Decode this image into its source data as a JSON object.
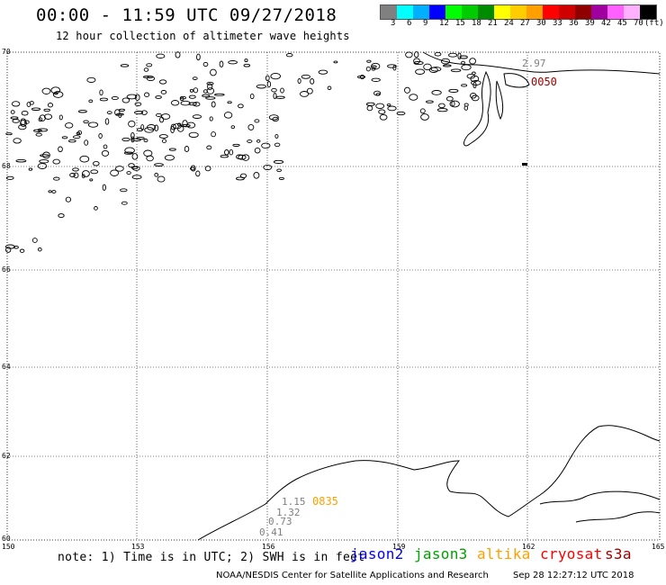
{
  "header": {
    "title": "00:00 - 11:59 UTC 09/27/2018",
    "subtitle": "12 hour collection of altimeter wave heights"
  },
  "color_scale": {
    "swatches": [
      "#808080",
      "#00ffff",
      "#00b0ff",
      "#0000ff",
      "#00ff00",
      "#00cc00",
      "#008c00",
      "#ffff00",
      "#ffcc00",
      "#ffa000",
      "#ff0000",
      "#d00000",
      "#900000",
      "#a000a0",
      "#ff60ff",
      "#ffb0ff",
      "#000000"
    ],
    "labels": [
      "3",
      "6",
      "9",
      "12",
      "15",
      "18",
      "21",
      "24",
      "27",
      "30",
      "33",
      "36",
      "39",
      "42",
      "45",
      "70",
      "(ft)"
    ]
  },
  "axes": {
    "lat_labels": [
      "70",
      "68",
      "66",
      "64",
      "62",
      "60"
    ],
    "lon_labels": [
      "150",
      "153",
      "156",
      "159",
      "162",
      "165"
    ]
  },
  "passes": {
    "top_value": "2.97",
    "top_time": "0050",
    "bottom_values": [
      "1.15",
      "1.32",
      "0.73",
      "0.41"
    ],
    "bottom_time": "0835"
  },
  "note": "note: 1) Time is in UTC; 2) SWH is in feet",
  "legend": {
    "jason2": {
      "label": "jason2",
      "color": "#0000ff"
    },
    "jason3": {
      "label": "jason3",
      "color": "#00a000"
    },
    "altika": {
      "label": "altika",
      "color": "#ffa000"
    },
    "cryosat": {
      "label": "cryosat",
      "color": "#ff0000"
    },
    "s3a": {
      "label": "s3a",
      "color": "#a00000"
    }
  },
  "footer": {
    "credit": "NOAA/NESDIS Center for Satellite Applications and Research",
    "timestamp": "Sep 28 12:27:12 UTC 2018"
  }
}
